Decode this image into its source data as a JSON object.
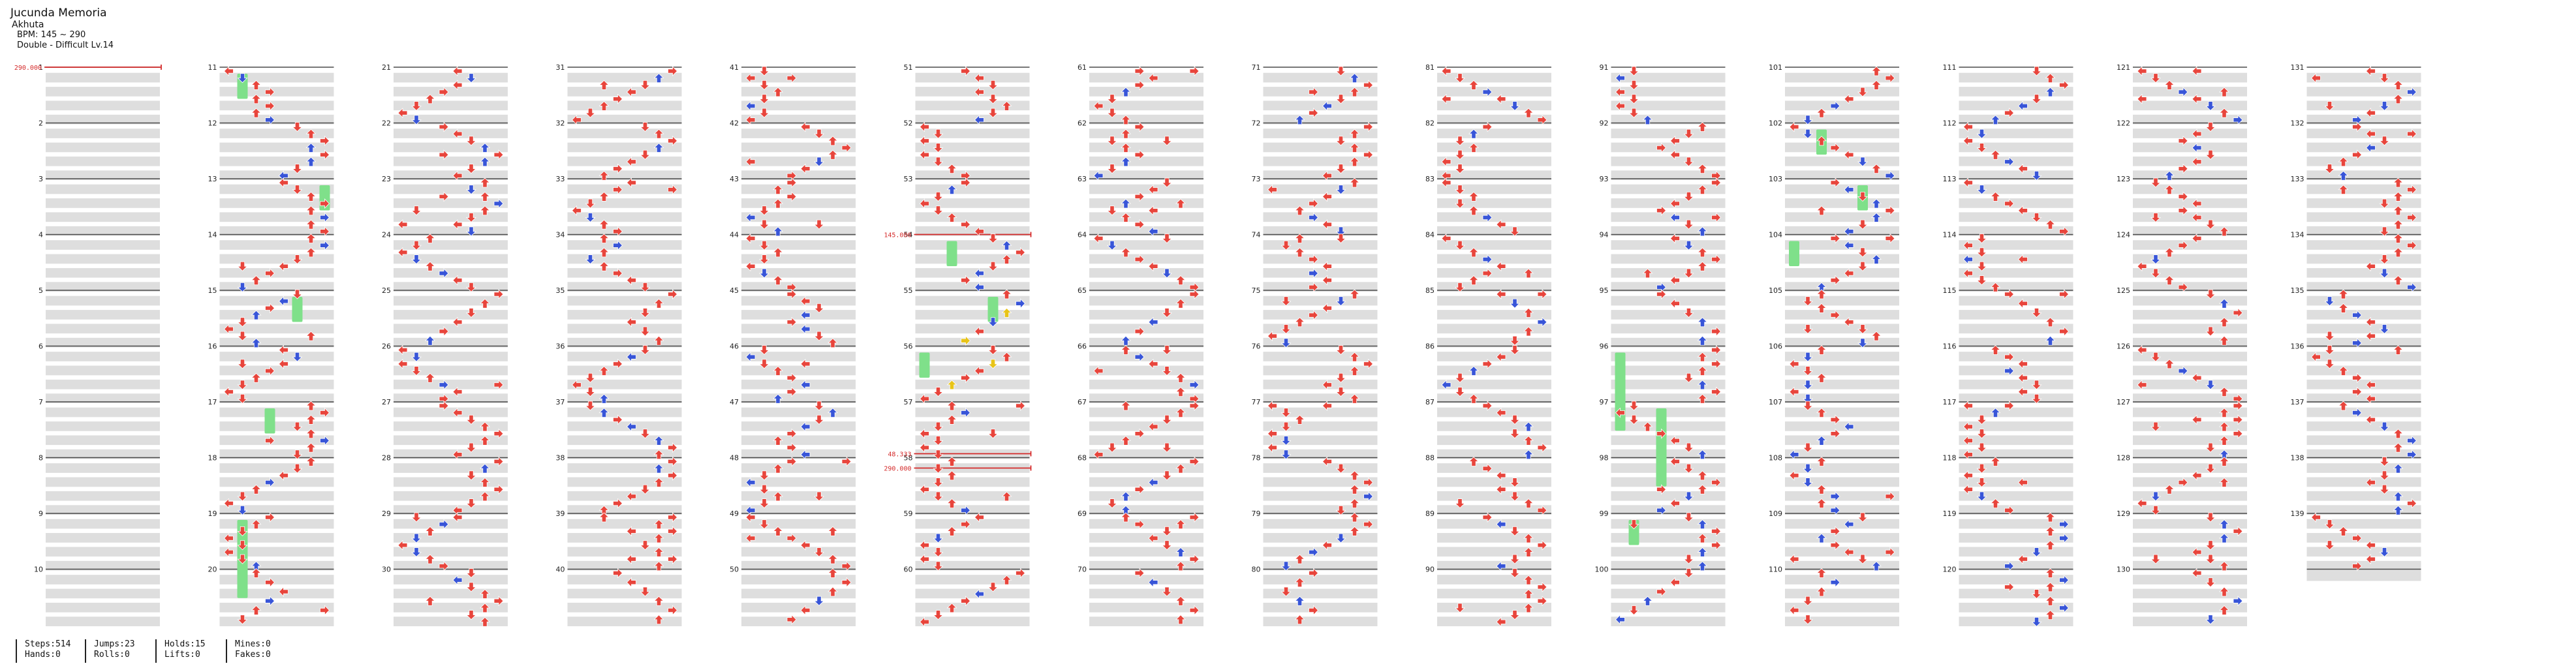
{
  "song": {
    "title": "Jucunda Memoria",
    "artist": "Akhuta",
    "bpm_text": "BPM: 145 ~ 290",
    "difficulty_text": "Double - Difficult  Lv.14"
  },
  "colors": {
    "red": "#e8453c",
    "blue": "#3855d8",
    "yellow": "#e8c419",
    "hold": "#7fe08a",
    "stripe": "#dedede",
    "line": "#4a4a4a",
    "bpm_marker": "#d42a2a"
  },
  "bpm_changes": [
    {
      "measure": 1,
      "label": "290.000"
    },
    {
      "measure": 54,
      "label": "145.000"
    },
    {
      "measure": 58,
      "label": "48.333"
    },
    {
      "measure": 58,
      "label": "290.000"
    }
  ],
  "total_measures": 139,
  "stats": {
    "steps_label": "Steps:514",
    "hands_label": "Hands:0",
    "jumps_label": "Jumps:23",
    "rolls_label": "Rolls:0",
    "holds_label": "Holds:15",
    "lifts_label": "Lifts:0",
    "mines_label": "Mines:0",
    "fakes_label": "Fakes:0"
  }
}
